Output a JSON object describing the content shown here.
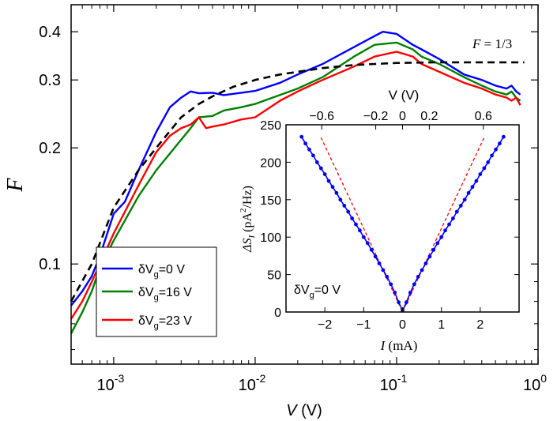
{
  "chart_data": [
    {
      "type": "line",
      "xscale": "log",
      "yscale": "log",
      "xlim": [
        0.0005,
        1
      ],
      "ylim": [
        0.055,
        0.47
      ],
      "ylabel": "F",
      "xlabel": {
        "main": "V",
        "unit": " (V)"
      },
      "xticks": [
        {
          "value": 0.001,
          "base": "10",
          "exp": "-3"
        },
        {
          "value": 0.01,
          "base": "10",
          "exp": "-2"
        },
        {
          "value": 0.1,
          "base": "10",
          "exp": "-1"
        },
        {
          "value": 1,
          "base": "10",
          "exp": "0"
        }
      ],
      "yticks": [
        {
          "value": 0.1,
          "label": "0.1"
        },
        {
          "value": 0.2,
          "label": "0.2"
        },
        {
          "value": 0.3,
          "label": "0.3"
        },
        {
          "value": 0.4,
          "label": "0.4"
        }
      ],
      "yminor": [
        0.06,
        0.07,
        0.08,
        0.09
      ],
      "legend_position": "lower-left",
      "series": [
        {
          "name": "δVg=0 V",
          "legend": {
            "pre": "δV",
            "sub": "g",
            "post": "=0 V"
          },
          "color": "#0000ff",
          "x": [
            0.0005,
            0.0006,
            0.0007,
            0.0008,
            0.001,
            0.0012,
            0.0015,
            0.002,
            0.0025,
            0.003,
            0.0035,
            0.004,
            0.005,
            0.006,
            0.008,
            0.01,
            0.015,
            0.02,
            0.03,
            0.05,
            0.07,
            0.08,
            0.1,
            0.13,
            0.15,
            0.2,
            0.3,
            0.4,
            0.5,
            0.6,
            0.65,
            0.7,
            0.75
          ],
          "y": [
            0.078,
            0.085,
            0.093,
            0.105,
            0.135,
            0.145,
            0.175,
            0.22,
            0.255,
            0.27,
            0.28,
            0.277,
            0.278,
            0.274,
            0.278,
            0.281,
            0.295,
            0.31,
            0.33,
            0.365,
            0.39,
            0.4,
            0.395,
            0.37,
            0.36,
            0.34,
            0.31,
            0.3,
            0.29,
            0.285,
            0.29,
            0.28,
            0.275
          ]
        },
        {
          "name": "δVg=16 V",
          "legend": {
            "pre": "δV",
            "sub": "g",
            "post": "=16 V"
          },
          "color": "#008000",
          "x": [
            0.0005,
            0.0006,
            0.0007,
            0.0008,
            0.001,
            0.0015,
            0.002,
            0.003,
            0.0035,
            0.004,
            0.005,
            0.006,
            0.008,
            0.01,
            0.02,
            0.03,
            0.05,
            0.07,
            0.1,
            0.13,
            0.15,
            0.2,
            0.3,
            0.4,
            0.5,
            0.6,
            0.65,
            0.7,
            0.75
          ],
          "y": [
            0.066,
            0.075,
            0.085,
            0.098,
            0.115,
            0.15,
            0.175,
            0.21,
            0.225,
            0.24,
            0.242,
            0.25,
            0.255,
            0.26,
            0.285,
            0.305,
            0.345,
            0.37,
            0.375,
            0.36,
            0.345,
            0.33,
            0.305,
            0.29,
            0.28,
            0.275,
            0.28,
            0.27,
            0.265
          ]
        },
        {
          "name": "δVg=23 V",
          "legend": {
            "pre": "δV",
            "sub": "g",
            "post": "=23 V"
          },
          "color": "#ff0000",
          "x": [
            0.0005,
            0.0006,
            0.0007,
            0.0008,
            0.001,
            0.0015,
            0.002,
            0.0025,
            0.003,
            0.0035,
            0.004,
            0.0045,
            0.005,
            0.006,
            0.008,
            0.01,
            0.015,
            0.02,
            0.03,
            0.05,
            0.07,
            0.1,
            0.13,
            0.15,
            0.2,
            0.3,
            0.4,
            0.5,
            0.6,
            0.65,
            0.7,
            0.75
          ],
          "y": [
            0.072,
            0.08,
            0.09,
            0.1,
            0.12,
            0.16,
            0.195,
            0.215,
            0.225,
            0.23,
            0.24,
            0.225,
            0.227,
            0.23,
            0.237,
            0.24,
            0.265,
            0.28,
            0.3,
            0.325,
            0.345,
            0.355,
            0.345,
            0.33,
            0.315,
            0.295,
            0.285,
            0.275,
            0.27,
            0.265,
            0.27,
            0.258
          ]
        },
        {
          "name": "F = 1/3",
          "color": "#000000",
          "dashed": true,
          "x": [
            0.0005,
            0.0007,
            0.001,
            0.0015,
            0.002,
            0.003,
            0.004,
            0.005,
            0.007,
            0.01,
            0.015,
            0.02,
            0.03,
            0.05,
            0.07,
            0.1,
            0.2,
            0.3,
            0.5,
            0.8
          ],
          "y": [
            0.08,
            0.1,
            0.14,
            0.175,
            0.2,
            0.24,
            0.26,
            0.272,
            0.288,
            0.3,
            0.31,
            0.315,
            0.322,
            0.328,
            0.33,
            0.332,
            0.3333,
            0.3333,
            0.3333,
            0.3333
          ]
        }
      ],
      "annotation": {
        "lhs": "F",
        "rhs": " = 1/3"
      }
    },
    {
      "type": "scatter",
      "xlim": [
        -3,
        3
      ],
      "ylim": [
        0,
        250
      ],
      "xlabel": {
        "var": "I",
        "unit": " (mA)"
      },
      "ylabel": {
        "pre": "ΔS",
        "sub": "I",
        "mid": "  (pA",
        "sup": "2",
        "post": "/Hz)"
      },
      "xticks": [
        {
          "value": -2,
          "label": "−2"
        },
        {
          "value": -1,
          "label": "−1"
        },
        {
          "value": 0,
          "label": "0"
        },
        {
          "value": 1,
          "label": "1"
        },
        {
          "value": 2,
          "label": "2"
        }
      ],
      "yticks": [
        {
          "value": 0,
          "label": "0"
        },
        {
          "value": 50,
          "label": "50"
        },
        {
          "value": 100,
          "label": "100"
        },
        {
          "value": 150,
          "label": "150"
        },
        {
          "value": 200,
          "label": "200"
        },
        {
          "value": 250,
          "label": "250"
        }
      ],
      "top_axis": {
        "label": "V (V)",
        "ticks": [
          {
            "value": -0.6,
            "label": "−0.6",
            "at_current": -2.08
          },
          {
            "value": -0.2,
            "label": "−0.2",
            "at_current": -0.69
          },
          {
            "value": 0,
            "label": "0",
            "at_current": 0
          },
          {
            "value": 0.2,
            "label": "0.2",
            "at_current": 0.69
          },
          {
            "value": 0.6,
            "label": "0.6",
            "at_current": 2.08
          }
        ]
      },
      "annotation": {
        "pre": "δV",
        "sub": "g",
        "post": "=0 V"
      },
      "series": [
        {
          "name": "ΔS_I",
          "color": "#0000ff",
          "x": [
            -2.6,
            -2.5,
            -2.4,
            -2.3,
            -2.2,
            -2.1,
            -2.0,
            -1.9,
            -1.8,
            -1.7,
            -1.6,
            -1.5,
            -1.4,
            -1.3,
            -1.2,
            -1.1,
            -1.0,
            -0.9,
            -0.8,
            -0.7,
            -0.6,
            -0.5,
            -0.4,
            -0.3,
            -0.2,
            -0.1,
            0,
            0.1,
            0.2,
            0.3,
            0.4,
            0.5,
            0.6,
            0.7,
            0.8,
            0.9,
            1.0,
            1.1,
            1.2,
            1.3,
            1.4,
            1.5,
            1.6,
            1.7,
            1.8,
            1.9,
            2.0,
            2.1,
            2.2,
            2.3,
            2.4,
            2.5,
            2.6
          ],
          "y": [
            234,
            225,
            217,
            209,
            200,
            192,
            184,
            175,
            167,
            159,
            150,
            142,
            134,
            125,
            117,
            109,
            100,
            92,
            83,
            74,
            65,
            56,
            47,
            37,
            26,
            13,
            2,
            13,
            26,
            37,
            47,
            56,
            65,
            74,
            83,
            92,
            100,
            109,
            117,
            125,
            134,
            142,
            150,
            159,
            167,
            175,
            184,
            192,
            200,
            209,
            217,
            225,
            234
          ]
        },
        {
          "name": "F = 1/3 reference",
          "color": "#ff0000",
          "dashed": true,
          "x": [
            -2.1,
            -1.05,
            0,
            1.05,
            2.1
          ],
          "y": [
            233,
            117,
            0,
            117,
            233
          ]
        }
      ]
    }
  ]
}
